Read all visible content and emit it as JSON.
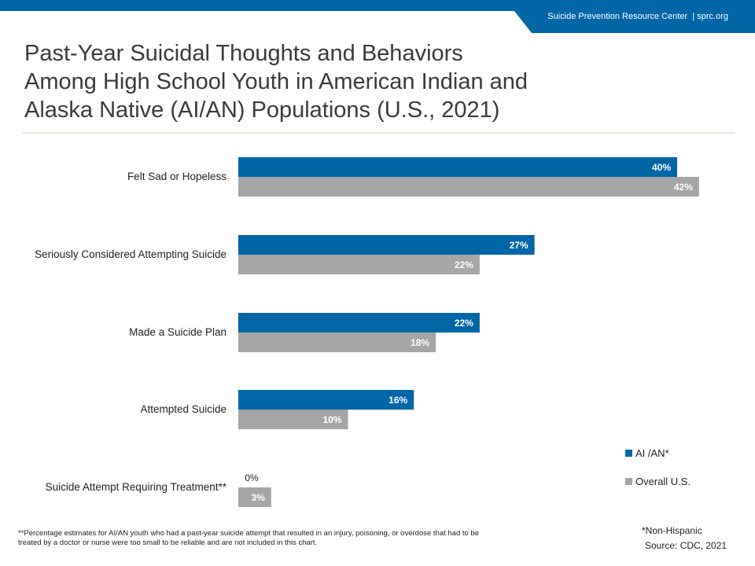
{
  "header": {
    "org": "Suicide Prevention Resource Center",
    "separator": "|",
    "site": "sprc.org"
  },
  "title_lines": [
    "Past-Year Suicidal Thoughts and Behaviors",
    "Among High School Youth in American Indian and",
    "Alaska Native (AI/AN) Populations (U.S., 2021)"
  ],
  "colors": {
    "accent": "#0066a6",
    "aian": "#0066a6",
    "overall": "#a6a6a6"
  },
  "chart_data": {
    "type": "bar",
    "orientation": "horizontal",
    "categories": [
      "Felt Sad or Hopeless",
      "Seriously Considered Attempting Suicide",
      "Made a Suicide Plan",
      "Attempted Suicide",
      "Suicide Attempt Requiring Treatment**"
    ],
    "series": [
      {
        "name": "AI /AN*",
        "values": [
          40,
          27,
          22,
          16,
          0
        ],
        "labels": [
          "40%",
          "27%",
          "22%",
          "16%",
          "0%"
        ],
        "color": "#0066a6"
      },
      {
        "name": "Overall U.S.",
        "values": [
          42,
          22,
          18,
          10,
          3
        ],
        "labels": [
          "42%",
          "22%",
          "18%",
          "10%",
          "3%"
        ],
        "color": "#a6a6a6"
      }
    ],
    "xlim": [
      0,
      45
    ],
    "grid": false,
    "legend": "bottom-right"
  },
  "footnote": "**Percentage estimates for AI/AN youth who had a past-year suicide attempt that resulted in an injury, poisoning, or overdose that had to be treated by a doctor or nurse were too small to be reliable and are not included in this chart.",
  "note": "*Non-Hispanic",
  "source": "Source: CDC, 2021"
}
